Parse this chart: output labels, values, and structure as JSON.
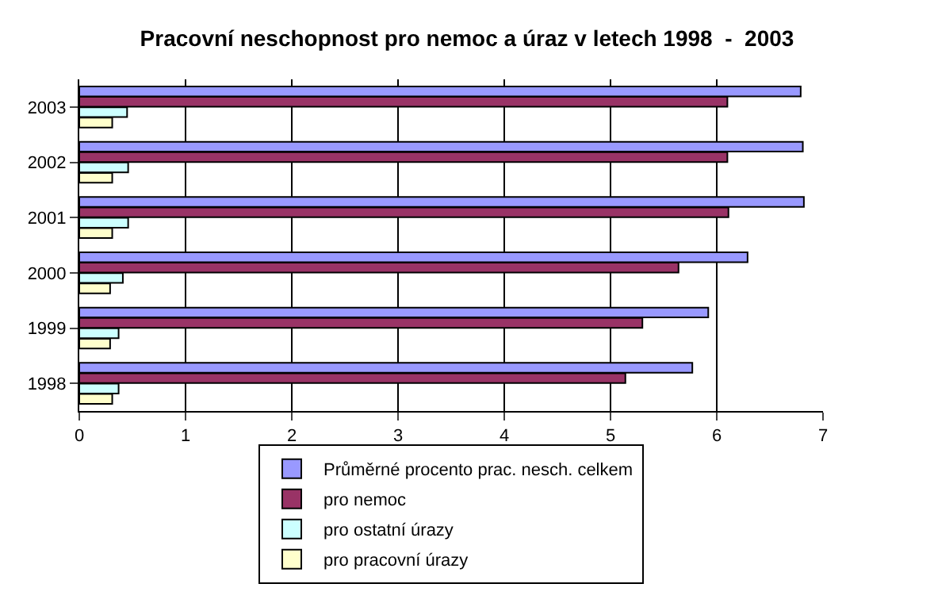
{
  "chart_data": {
    "type": "bar",
    "orientation": "horizontal",
    "title": "Pracovní neschopnost pro nemoc a úraz v letech 1998  -  2003",
    "categories": [
      "2003",
      "2002",
      "2001",
      "2000",
      "1999",
      "1998"
    ],
    "series": [
      {
        "name": "Průměrné procento prac. nesch. celkem",
        "color": "#9999ff",
        "values": [
          6.79,
          6.81,
          6.82,
          6.29,
          5.92,
          5.77
        ]
      },
      {
        "name": "pro nemoc",
        "color": "#993366",
        "values": [
          6.1,
          6.1,
          6.11,
          5.64,
          5.3,
          5.14
        ]
      },
      {
        "name": "pro ostatní úrazy",
        "color": "#ccffff",
        "values": [
          0.45,
          0.46,
          0.46,
          0.41,
          0.37,
          0.37
        ]
      },
      {
        "name": "pro pracovní úrazy",
        "color": "#ffffcc",
        "values": [
          0.31,
          0.31,
          0.31,
          0.29,
          0.29,
          0.31
        ]
      }
    ],
    "xlim": [
      0,
      7
    ],
    "xticks": [
      0,
      1,
      2,
      3,
      4,
      5,
      6,
      7
    ],
    "grid": "x",
    "legend": "bottom"
  }
}
